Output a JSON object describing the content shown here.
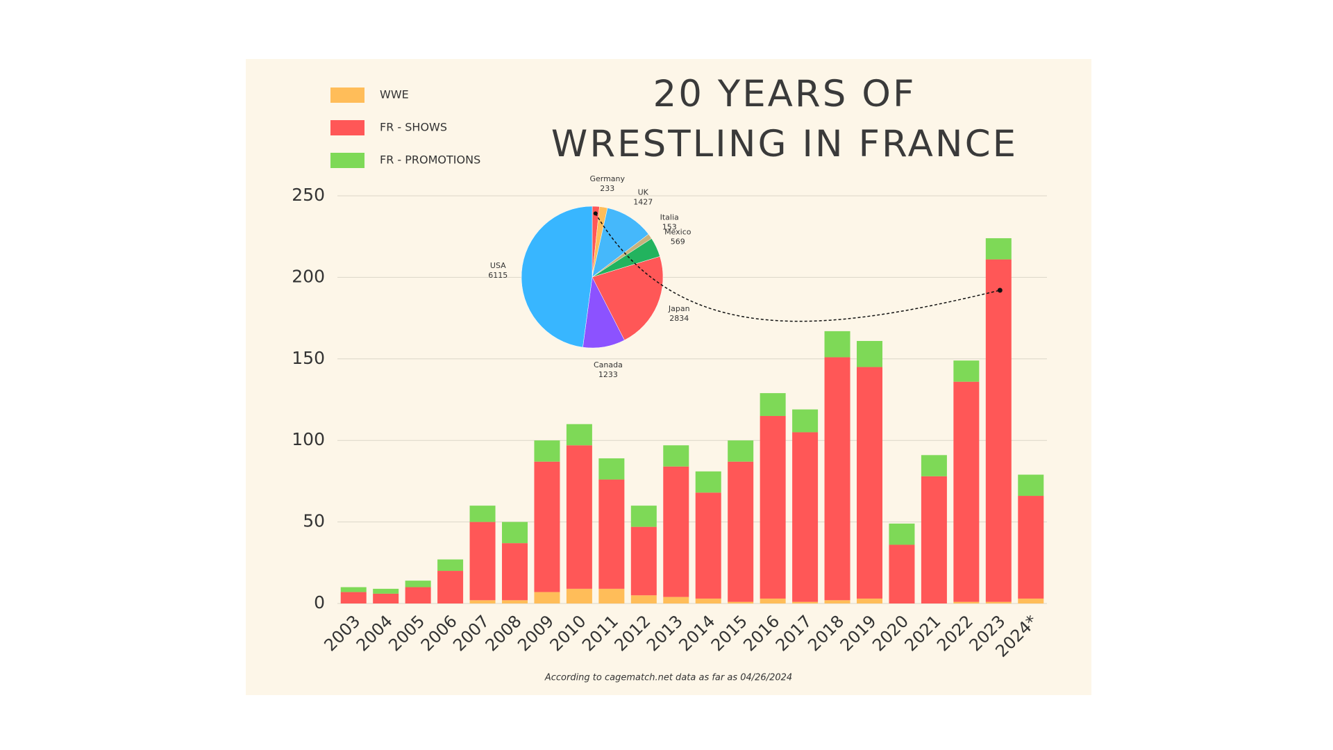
{
  "chart_data": [
    {
      "type": "bar",
      "stacked": true,
      "title": "20 YEARS OF WRESTLING IN FRANCE",
      "source": "According to cagematch.net data as far as 04/26/2024",
      "categories": [
        "2003",
        "2004",
        "2005",
        "2006",
        "2007",
        "2008",
        "2009",
        "2010",
        "2011",
        "2012",
        "2013",
        "2014",
        "2015",
        "2016",
        "2017",
        "2018",
        "2019",
        "2020",
        "2021",
        "2022",
        "2023",
        "2024*"
      ],
      "series": [
        {
          "name": "WWE",
          "color": "#ffbd59",
          "values": [
            0,
            0,
            0,
            0,
            2,
            2,
            7,
            9,
            9,
            5,
            4,
            3,
            1,
            3,
            1,
            2,
            3,
            0,
            0,
            1,
            1,
            3
          ]
        },
        {
          "name": "FR - SHOWS",
          "color": "#ff5757",
          "values": [
            7,
            6,
            10,
            20,
            48,
            35,
            80,
            88,
            67,
            42,
            80,
            65,
            86,
            112,
            104,
            149,
            142,
            36,
            78,
            135,
            210,
            63
          ]
        },
        {
          "name": "FR - PROMOTIONS",
          "color": "#7ed957",
          "values": [
            3,
            3,
            4,
            7,
            10,
            13,
            13,
            13,
            13,
            13,
            13,
            13,
            13,
            14,
            14,
            16,
            16,
            13,
            13,
            13,
            13,
            13
          ]
        }
      ],
      "ylim": [
        0,
        250
      ],
      "yticks": [
        0,
        50,
        100,
        150,
        200,
        250
      ],
      "grid": true
    },
    {
      "type": "pie",
      "categories": [
        null,
        "Germany",
        "UK",
        "Italia",
        "Mexico",
        "Japan",
        "Canada",
        "USA"
      ],
      "values": [
        210,
        233,
        1427,
        153,
        569,
        2834,
        1233,
        6115
      ],
      "colors": [
        "#ff5757",
        "#ffbd59",
        "#45b8fb",
        "#c9b27c",
        "#22b35e",
        "#ff5757",
        "#8c52ff",
        "#38b6ff"
      ]
    }
  ]
}
